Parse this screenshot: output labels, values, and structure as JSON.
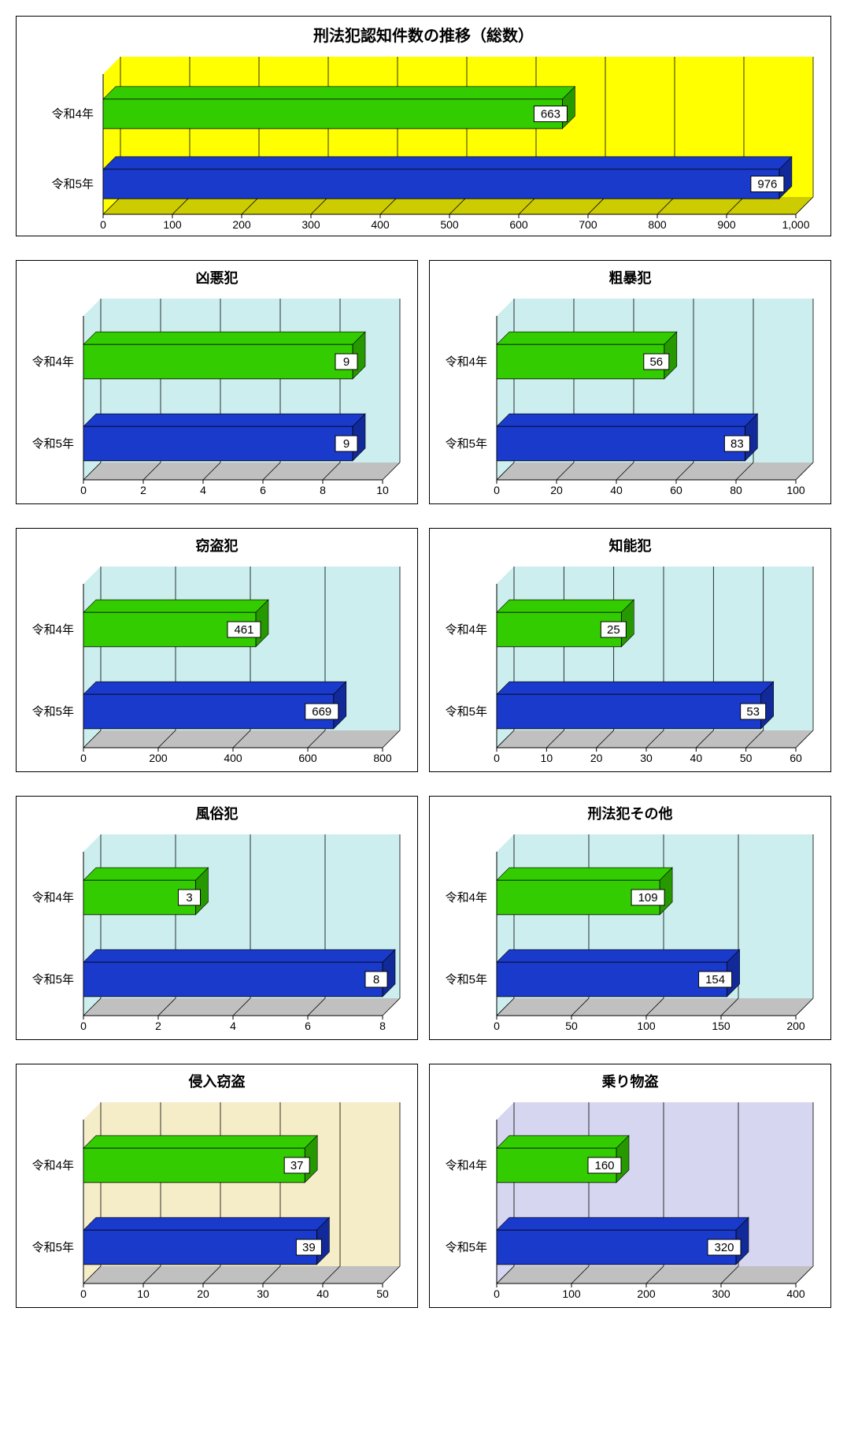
{
  "categories": [
    "令和4年",
    "令和5年"
  ],
  "bar_colors": {
    "r4": "#33cc00",
    "r5": "#1a3acc"
  },
  "bar_shade": {
    "r4": "#269900",
    "r5": "#122a99"
  },
  "floor_color_default": "#c0c0c0",
  "label_box": {
    "fill": "#ffffff",
    "stroke": "#000000",
    "font_color": "#000000"
  },
  "axis_font_size": 14,
  "cat_font_size": 15,
  "title_font_size_main": 20,
  "title_font_size_small": 18,
  "main": {
    "title": "刑法犯認知件数の推移（総数）",
    "values": [
      663,
      976
    ],
    "xmax": 1000,
    "xtick_step": 100,
    "xtick_last": "1,000",
    "plot_bg": "#ffff00",
    "wall_bg": "#ffff00",
    "floor_color": "#cccc00"
  },
  "charts": [
    [
      {
        "title": "凶悪犯",
        "values": [
          9,
          9
        ],
        "xmax": 10,
        "xtick_step": 2,
        "bg": "#cceeee"
      },
      {
        "title": "粗暴犯",
        "values": [
          56,
          83
        ],
        "xmax": 100,
        "xtick_step": 20,
        "bg": "#cceeee"
      }
    ],
    [
      {
        "title": "窃盗犯",
        "values": [
          461,
          669
        ],
        "xmax": 800,
        "xtick_step": 200,
        "bg": "#cceeee"
      },
      {
        "title": "知能犯",
        "values": [
          25,
          53
        ],
        "xmax": 60,
        "xtick_step": 10,
        "bg": "#cceeee"
      }
    ],
    [
      {
        "title": "風俗犯",
        "values": [
          3,
          8
        ],
        "xmax": 8,
        "xtick_step": 2,
        "bg": "#cceeee"
      },
      {
        "title": "刑法犯その他",
        "values": [
          109,
          154
        ],
        "xmax": 200,
        "xtick_step": 50,
        "bg": "#cceeee"
      }
    ],
    [
      {
        "title": "侵入窃盗",
        "values": [
          37,
          39
        ],
        "xmax": 50,
        "xtick_step": 10,
        "bg": "#f5ecc8"
      },
      {
        "title": "乗り物盗",
        "values": [
          160,
          320
        ],
        "xmax": 400,
        "xtick_step": 100,
        "bg": "#d6d6f0"
      }
    ]
  ]
}
